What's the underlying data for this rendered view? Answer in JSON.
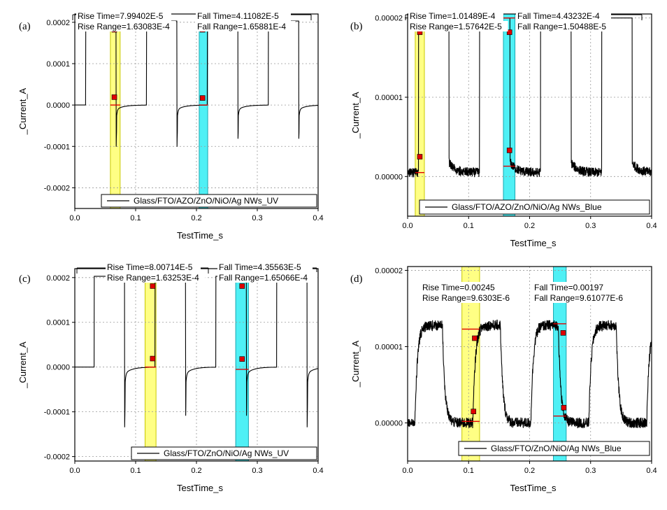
{
  "chart_data": [
    {
      "panel": "(a)",
      "type": "line",
      "xlabel": "TestTime_s",
      "ylabel": "_Current_A",
      "xlim": [
        0.0,
        0.4
      ],
      "ylim": [
        -0.00025,
        0.00022
      ],
      "xticks": [
        "0.0",
        "0.1",
        "0.2",
        "0.3",
        "0.4"
      ],
      "xtick_values": [
        0.0,
        0.1,
        0.2,
        0.3,
        0.4
      ],
      "yticks": [
        "-0.0002",
        "-0.0001",
        "0.0000",
        "0.0001",
        "0.0002"
      ],
      "ytick_values": [
        -0.0002,
        -0.0001,
        0.0,
        0.0001,
        0.0002
      ],
      "grid": true,
      "legend": "Glass/FTO/AZO/ZnO/NiO/Ag NWs_UV",
      "annotations": {
        "rise_time": "Rise Time=7.99402E-5",
        "rise_range": "Rise Range=1.63083E-4",
        "fall_time": "Fall Time=4.11082E-5",
        "fall_range": "Fall Range=1.65881E-4"
      },
      "rise_band": [
        0.0585,
        0.0745
      ],
      "fall_band": [
        0.2045,
        0.2185
      ],
      "rise_points": [
        {
          "x": 0.065,
          "y": 1.9e-05
        },
        {
          "x": 0.065,
          "y": 0.000182
        }
      ],
      "fall_points": [
        {
          "x": 0.21,
          "y": 0.000182
        },
        {
          "x": 0.21,
          "y": 1.7e-05
        }
      ],
      "rise_levels": [
        0.0,
        0.000203
      ],
      "fall_levels": [
        0.000203,
        0.0
      ],
      "waveform": {
        "kind": "spike",
        "period": 0.1,
        "first_on": 0.018,
        "on_duration": 0.05,
        "low": 0.0,
        "high": 0.000203,
        "dip": -9e-05
      }
    },
    {
      "panel": "(b)",
      "type": "line",
      "xlabel": "TestTime_s",
      "ylabel": "_Current_A",
      "xlim": [
        0.0,
        0.4
      ],
      "ylim": [
        -5e-06,
        2.05e-05
      ],
      "xticks": [
        "0.0",
        "0.1",
        "0.2",
        "0.3",
        "0.4"
      ],
      "xtick_values": [
        0.0,
        0.1,
        0.2,
        0.3,
        0.4
      ],
      "yticks": [
        "0.00000",
        "0.00001",
        "0.00002"
      ],
      "ytick_values": [
        0.0,
        1e-05,
        2e-05
      ],
      "grid": true,
      "legend": "Glass/FTO/AZO/ZnO/NiO/Ag NWs_Blue",
      "annotations": {
        "rise_time": "Rise Time=1.01489E-4",
        "rise_range": "Rise Range=1.57642E-5",
        "fall_time": "Fall Time=4.43232E-4",
        "fall_range": "Fall Range=1.50488E-5"
      },
      "rise_band": [
        0.0125,
        0.0275
      ],
      "fall_band": [
        0.157,
        0.176
      ],
      "rise_points": [
        {
          "x": 0.02,
          "y": 2.5e-06
        },
        {
          "x": 0.02,
          "y": 1.82e-05
        }
      ],
      "fall_points": [
        {
          "x": 0.167,
          "y": 1.82e-05
        },
        {
          "x": 0.167,
          "y": 3.3e-06
        }
      ],
      "rise_levels": [
        5e-07,
        2e-05
      ],
      "fall_levels": [
        2e-05,
        1.3e-06
      ],
      "waveform": {
        "kind": "decay",
        "period": 0.1,
        "first_on": 0.018,
        "on_duration": 0.05,
        "low": 5e-07,
        "high": 2e-05,
        "tail": 8e-07,
        "tau": 0.01,
        "noise": 6e-07
      }
    },
    {
      "panel": "(c)",
      "type": "line",
      "xlabel": "TestTime_s",
      "ylabel": "_Current_A",
      "xlim": [
        0.0,
        0.4
      ],
      "ylim": [
        -0.00021,
        0.00022
      ],
      "xticks": [
        "0.0",
        "0.1",
        "0.2",
        "0.3",
        "0.4"
      ],
      "xtick_values": [
        0.0,
        0.1,
        0.2,
        0.3,
        0.4
      ],
      "yticks": [
        "-0.0002",
        "-0.0001",
        "0.0000",
        "0.0001",
        "0.0002"
      ],
      "ytick_values": [
        -0.0002,
        -0.0001,
        0.0,
        0.0001,
        0.0002
      ],
      "grid": true,
      "legend": "Glass/FTO/ZnO/NiO/Ag NWs_UV",
      "annotations": {
        "rise_time": "Rise Time=8.00714E-5",
        "rise_range": "Rise Range=1.63253E-4",
        "fall_time": "Fall Time=4.35563E-5",
        "fall_range": "Fall Range=1.65066E-4"
      },
      "rise_band": [
        0.1155,
        0.1335
      ],
      "fall_band": [
        0.2645,
        0.2855
      ],
      "rise_points": [
        {
          "x": 0.128,
          "y": 1.9e-05
        },
        {
          "x": 0.128,
          "y": 0.000181
        }
      ],
      "fall_points": [
        {
          "x": 0.275,
          "y": 0.000181
        },
        {
          "x": 0.275,
          "y": 1.8e-05
        }
      ],
      "rise_levels": [
        0.0,
        0.000205
      ],
      "fall_levels": [
        0.000205,
        -5e-06
      ],
      "waveform": {
        "kind": "spike",
        "period": 0.1,
        "first_on": 0.032,
        "on_duration": 0.05,
        "low": 0.0,
        "high": 0.000203,
        "dip": -0.00012
      }
    },
    {
      "panel": "(d)",
      "type": "line",
      "xlabel": "TestTime_s",
      "ylabel": "_Current_A",
      "xlim": [
        0.0,
        0.4
      ],
      "ylim": [
        -5e-06,
        2.05e-05
      ],
      "xticks": [
        "0.0",
        "0.1",
        "0.2",
        "0.3",
        "0.4"
      ],
      "xtick_values": [
        0.0,
        0.1,
        0.2,
        0.3,
        0.4
      ],
      "yticks": [
        "0.00000",
        "0.00001",
        "0.00002"
      ],
      "ytick_values": [
        0.0,
        1e-05,
        2e-05
      ],
      "grid": true,
      "legend": "Glass/FTO/ZnO/NiO/Ag NWs_Blue",
      "annotations": {
        "rise_time": "Rise Time=0.00245",
        "rise_range": "Rise Range=9.6303E-6",
        "fall_time": "Fall Time=0.00197",
        "fall_range": "Fall Range=9.61077E-6"
      },
      "rise_band": [
        0.089,
        0.118
      ],
      "fall_band": [
        0.239,
        0.26
      ],
      "rise_points": [
        {
          "x": 0.108,
          "y": 1.5e-06
        },
        {
          "x": 0.11,
          "y": 1.11e-05
        }
      ],
      "fall_points": [
        {
          "x": 0.255,
          "y": 1.18e-05
        },
        {
          "x": 0.256,
          "y": 2e-06
        }
      ],
      "rise_levels": [
        2e-07,
        1.23e-05
      ],
      "fall_levels": [
        1.3e-05,
        9e-07
      ],
      "waveform": {
        "kind": "slow",
        "period": 0.095,
        "first_on": 0.012,
        "on_duration": 0.045,
        "low": 0.0,
        "high": 1.28e-05,
        "tau": 0.004,
        "noise": 7e-07
      }
    }
  ]
}
